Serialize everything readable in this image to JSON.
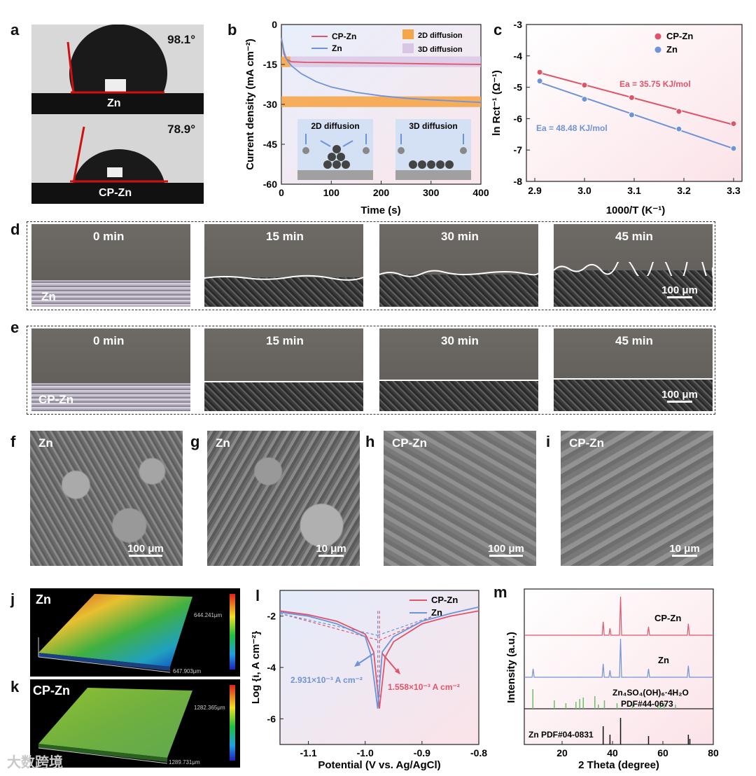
{
  "panel_labels": {
    "a": "a",
    "b": "b",
    "c": "c",
    "d": "d",
    "e": "e",
    "f": "f",
    "g": "g",
    "h": "h",
    "i": "i",
    "j": "j",
    "k": "k",
    "l": "l",
    "m": "m"
  },
  "a": {
    "top": {
      "angle": "98.1°",
      "label": "Zn"
    },
    "bottom": {
      "angle": "78.9°",
      "label": "CP-Zn"
    }
  },
  "b": {
    "ylabel": "Current density (mA cm⁻²)",
    "xlabel": "Time (s)",
    "legend": [
      "CP-Zn",
      "Zn"
    ],
    "regions": [
      "2D diffusion",
      "3D diffusion"
    ],
    "inset": [
      "2D diffusion",
      "3D diffusion"
    ]
  },
  "c": {
    "ylabel": "ln Rct⁻¹ (Ω⁻¹)",
    "xlabel": "1000/T (K⁻¹)",
    "legend": [
      "CP-Zn",
      "Zn"
    ],
    "ea1": "Ea = 35.75 KJ/mol",
    "ea2": "Ea = 48.48 KJ/mol"
  },
  "d": {
    "times": [
      "0 min",
      "15 min",
      "30 min",
      "45 min"
    ],
    "sample": "Zn",
    "scale": "100 μm"
  },
  "e": {
    "times": [
      "0 min",
      "15 min",
      "30 min",
      "45 min"
    ],
    "sample": "CP-Zn",
    "scale": "100 μm"
  },
  "f": {
    "sample": "Zn",
    "scale": "100 μm"
  },
  "g": {
    "sample": "Zn",
    "scale": "10 μm"
  },
  "h": {
    "sample": "CP-Zn",
    "scale": "100 μm"
  },
  "i": {
    "sample": "CP-Zn",
    "scale": "10 μm"
  },
  "j": {
    "sample": "Zn",
    "dim1": "644.241μm",
    "dim2": "647.903μm"
  },
  "k": {
    "sample": "CP-Zn",
    "dim1": "1282.365μm",
    "dim2": "1289.731μm"
  },
  "l": {
    "ylabel": "Log {i, A cm⁻²}",
    "xlabel": "Potential (V vs. Ag/AgCl)",
    "legend": [
      "CP-Zn",
      "Zn"
    ],
    "ann_zn": "2.931×10⁻³ A cm⁻²",
    "ann_cp": "1.558×10⁻³ A cm⁻²"
  },
  "m": {
    "ylabel": "Intensity (a.u.)",
    "xlabel": "2 Theta (degree)",
    "labels": [
      "CP-Zn",
      "Zn",
      "Zn₄SO₄(OH)₆·4H₂O",
      "PDF#44-0673",
      "Zn PDF#04-0831"
    ]
  },
  "watermark": "大数跨境",
  "colors": {
    "cpzn": "#e0546a",
    "zn": "#6f93d8",
    "orange": "#f6a64a",
    "lavender": "#d9c6e6"
  },
  "chart_data": [
    {
      "type": "line",
      "panel": "b",
      "title": "",
      "xlabel": "Time (s)",
      "ylabel": "Current density (mA cm-2)",
      "xlim": [
        0,
        400
      ],
      "ylim": [
        -60,
        0
      ],
      "xticks": [
        0,
        100,
        200,
        300,
        400
      ],
      "yticks": [
        0,
        -15,
        -30,
        -45,
        -60
      ],
      "series": [
        {
          "name": "CP-Zn",
          "x": [
            0,
            5,
            10,
            20,
            50,
            100,
            200,
            300,
            400
          ],
          "y": [
            -5,
            -11,
            -13,
            -14,
            -14.2,
            -14.3,
            -14.5,
            -14.8,
            -15
          ]
        },
        {
          "name": "Zn",
          "x": [
            0,
            5,
            10,
            20,
            40,
            70,
            100,
            150,
            200,
            250,
            300,
            350,
            400
          ],
          "y": [
            -5,
            -10,
            -13,
            -15.5,
            -18.5,
            -21.5,
            -23.5,
            -25.5,
            -26.8,
            -27.7,
            -28.3,
            -28.8,
            -29.3
          ]
        }
      ],
      "regions": [
        {
          "name": "2D diffusion",
          "y": [
            -16,
            -12
          ],
          "x": [
            0,
            18
          ]
        },
        {
          "name": "2D diffusion",
          "y": [
            -31,
            -27
          ],
          "x": [
            0,
            400
          ]
        },
        {
          "name": "3D diffusion",
          "y": [
            -16,
            -12
          ],
          "x": [
            18,
            400
          ]
        }
      ]
    },
    {
      "type": "scatter",
      "panel": "c",
      "title": "",
      "xlabel": "1000/T (K-1)",
      "ylabel": "ln Rct-1",
      "xlim": [
        2.9,
        3.3
      ],
      "ylim": [
        -8,
        -3
      ],
      "xticks": [
        2.9,
        3.0,
        3.1,
        3.2,
        3.3
      ],
      "yticks": [
        -3,
        -4,
        -5,
        -6,
        -7,
        -8
      ],
      "series": [
        {
          "name": "CP-Zn",
          "x": [
            2.91,
            3.0,
            3.095,
            3.19,
            3.3
          ],
          "y": [
            -4.52,
            -4.93,
            -5.33,
            -5.77,
            -6.16
          ]
        },
        {
          "name": "Zn",
          "x": [
            2.91,
            3.0,
            3.095,
            3.19,
            3.3
          ],
          "y": [
            -4.8,
            -5.38,
            -5.88,
            -6.33,
            -6.95
          ]
        }
      ]
    },
    {
      "type": "line",
      "panel": "l",
      "title": "",
      "xlabel": "Potential (V vs. Ag/AgCl)",
      "ylabel": "Log {i, A cm-2}",
      "xlim": [
        -1.15,
        -0.8
      ],
      "ylim": [
        -7,
        -1
      ],
      "xticks": [
        -1.1,
        -1.0,
        -0.9,
        -0.8
      ],
      "yticks": [
        -2,
        -4,
        -6
      ],
      "series": [
        {
          "name": "CP-Zn",
          "x": [
            -1.15,
            -1.1,
            -1.05,
            -1.0,
            -0.985,
            -0.975,
            -0.965,
            -0.95,
            -0.9,
            -0.85,
            -0.8
          ],
          "y": [
            -1.8,
            -1.95,
            -2.2,
            -2.7,
            -3.4,
            -5.6,
            -3.6,
            -3.0,
            -2.3,
            -2.0,
            -1.8
          ]
        },
        {
          "name": "Zn",
          "x": [
            -1.15,
            -1.1,
            -1.05,
            -1.0,
            -0.99,
            -0.978,
            -0.97,
            -0.95,
            -0.9,
            -0.85,
            -0.8
          ],
          "y": [
            -1.85,
            -2.0,
            -2.3,
            -2.8,
            -3.5,
            -5.6,
            -3.4,
            -2.8,
            -2.2,
            -1.9,
            -1.65
          ]
        }
      ]
    },
    {
      "type": "line",
      "panel": "m",
      "title": "",
      "xlabel": "2 Theta (degree)",
      "ylabel": "Intensity (a.u.)",
      "xlim": [
        5,
        80
      ],
      "xticks": [
        20,
        40,
        60,
        80
      ],
      "peaks": {
        "CP-Zn": [
          36.3,
          39.0,
          43.2,
          54.3,
          70.1
        ],
        "Zn": [
          8.5,
          36.3,
          39.0,
          43.2,
          54.3,
          70.1
        ],
        "PDF#44-0673": [
          8.4,
          16.9,
          21.5,
          25.5,
          27.0,
          28.4,
          33.0,
          34.4,
          36.8,
          41.8,
          48.0,
          58.0,
          59.0,
          60.5,
          65.0
        ],
        "PDF#04-0831": [
          36.3,
          39.0,
          43.2,
          54.3,
          70.1,
          70.7
        ]
      }
    }
  ]
}
